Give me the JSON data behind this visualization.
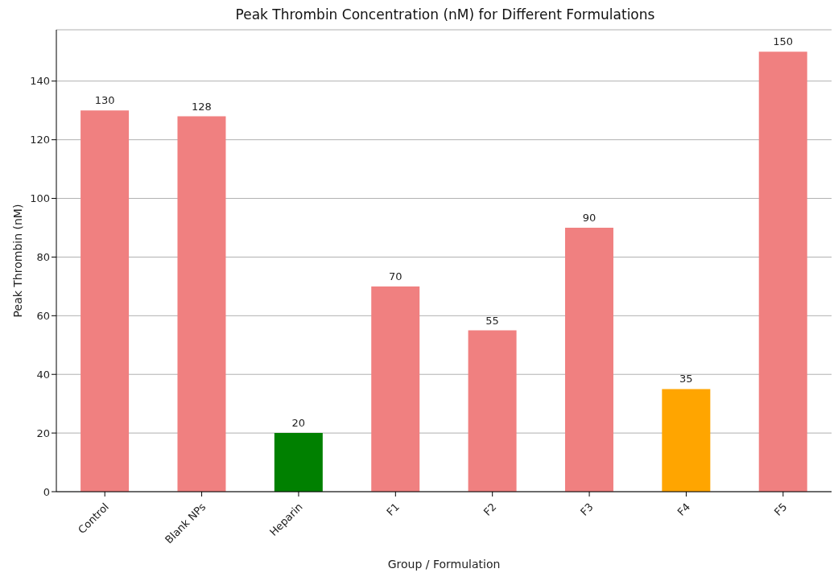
{
  "chart_data": {
    "type": "bar",
    "title": "Peak Thrombin Concentration (nM) for Different Formulations",
    "xlabel": "Group / Formulation",
    "ylabel": "Peak Thrombin (nM)",
    "categories": [
      "Control",
      "Blank NPs",
      "Heparin",
      "F1",
      "F2",
      "F3",
      "F4",
      "F5"
    ],
    "values": [
      130,
      128,
      20,
      70,
      55,
      90,
      35,
      150
    ],
    "colors": [
      "#f08080",
      "#f08080",
      "#008000",
      "#f08080",
      "#f08080",
      "#f08080",
      "#ffa500",
      "#f08080"
    ],
    "ylim": [
      0,
      157.5
    ],
    "yticks": [
      0,
      20,
      40,
      60,
      80,
      100,
      120,
      140
    ],
    "grid": "y",
    "data_labels": true
  }
}
